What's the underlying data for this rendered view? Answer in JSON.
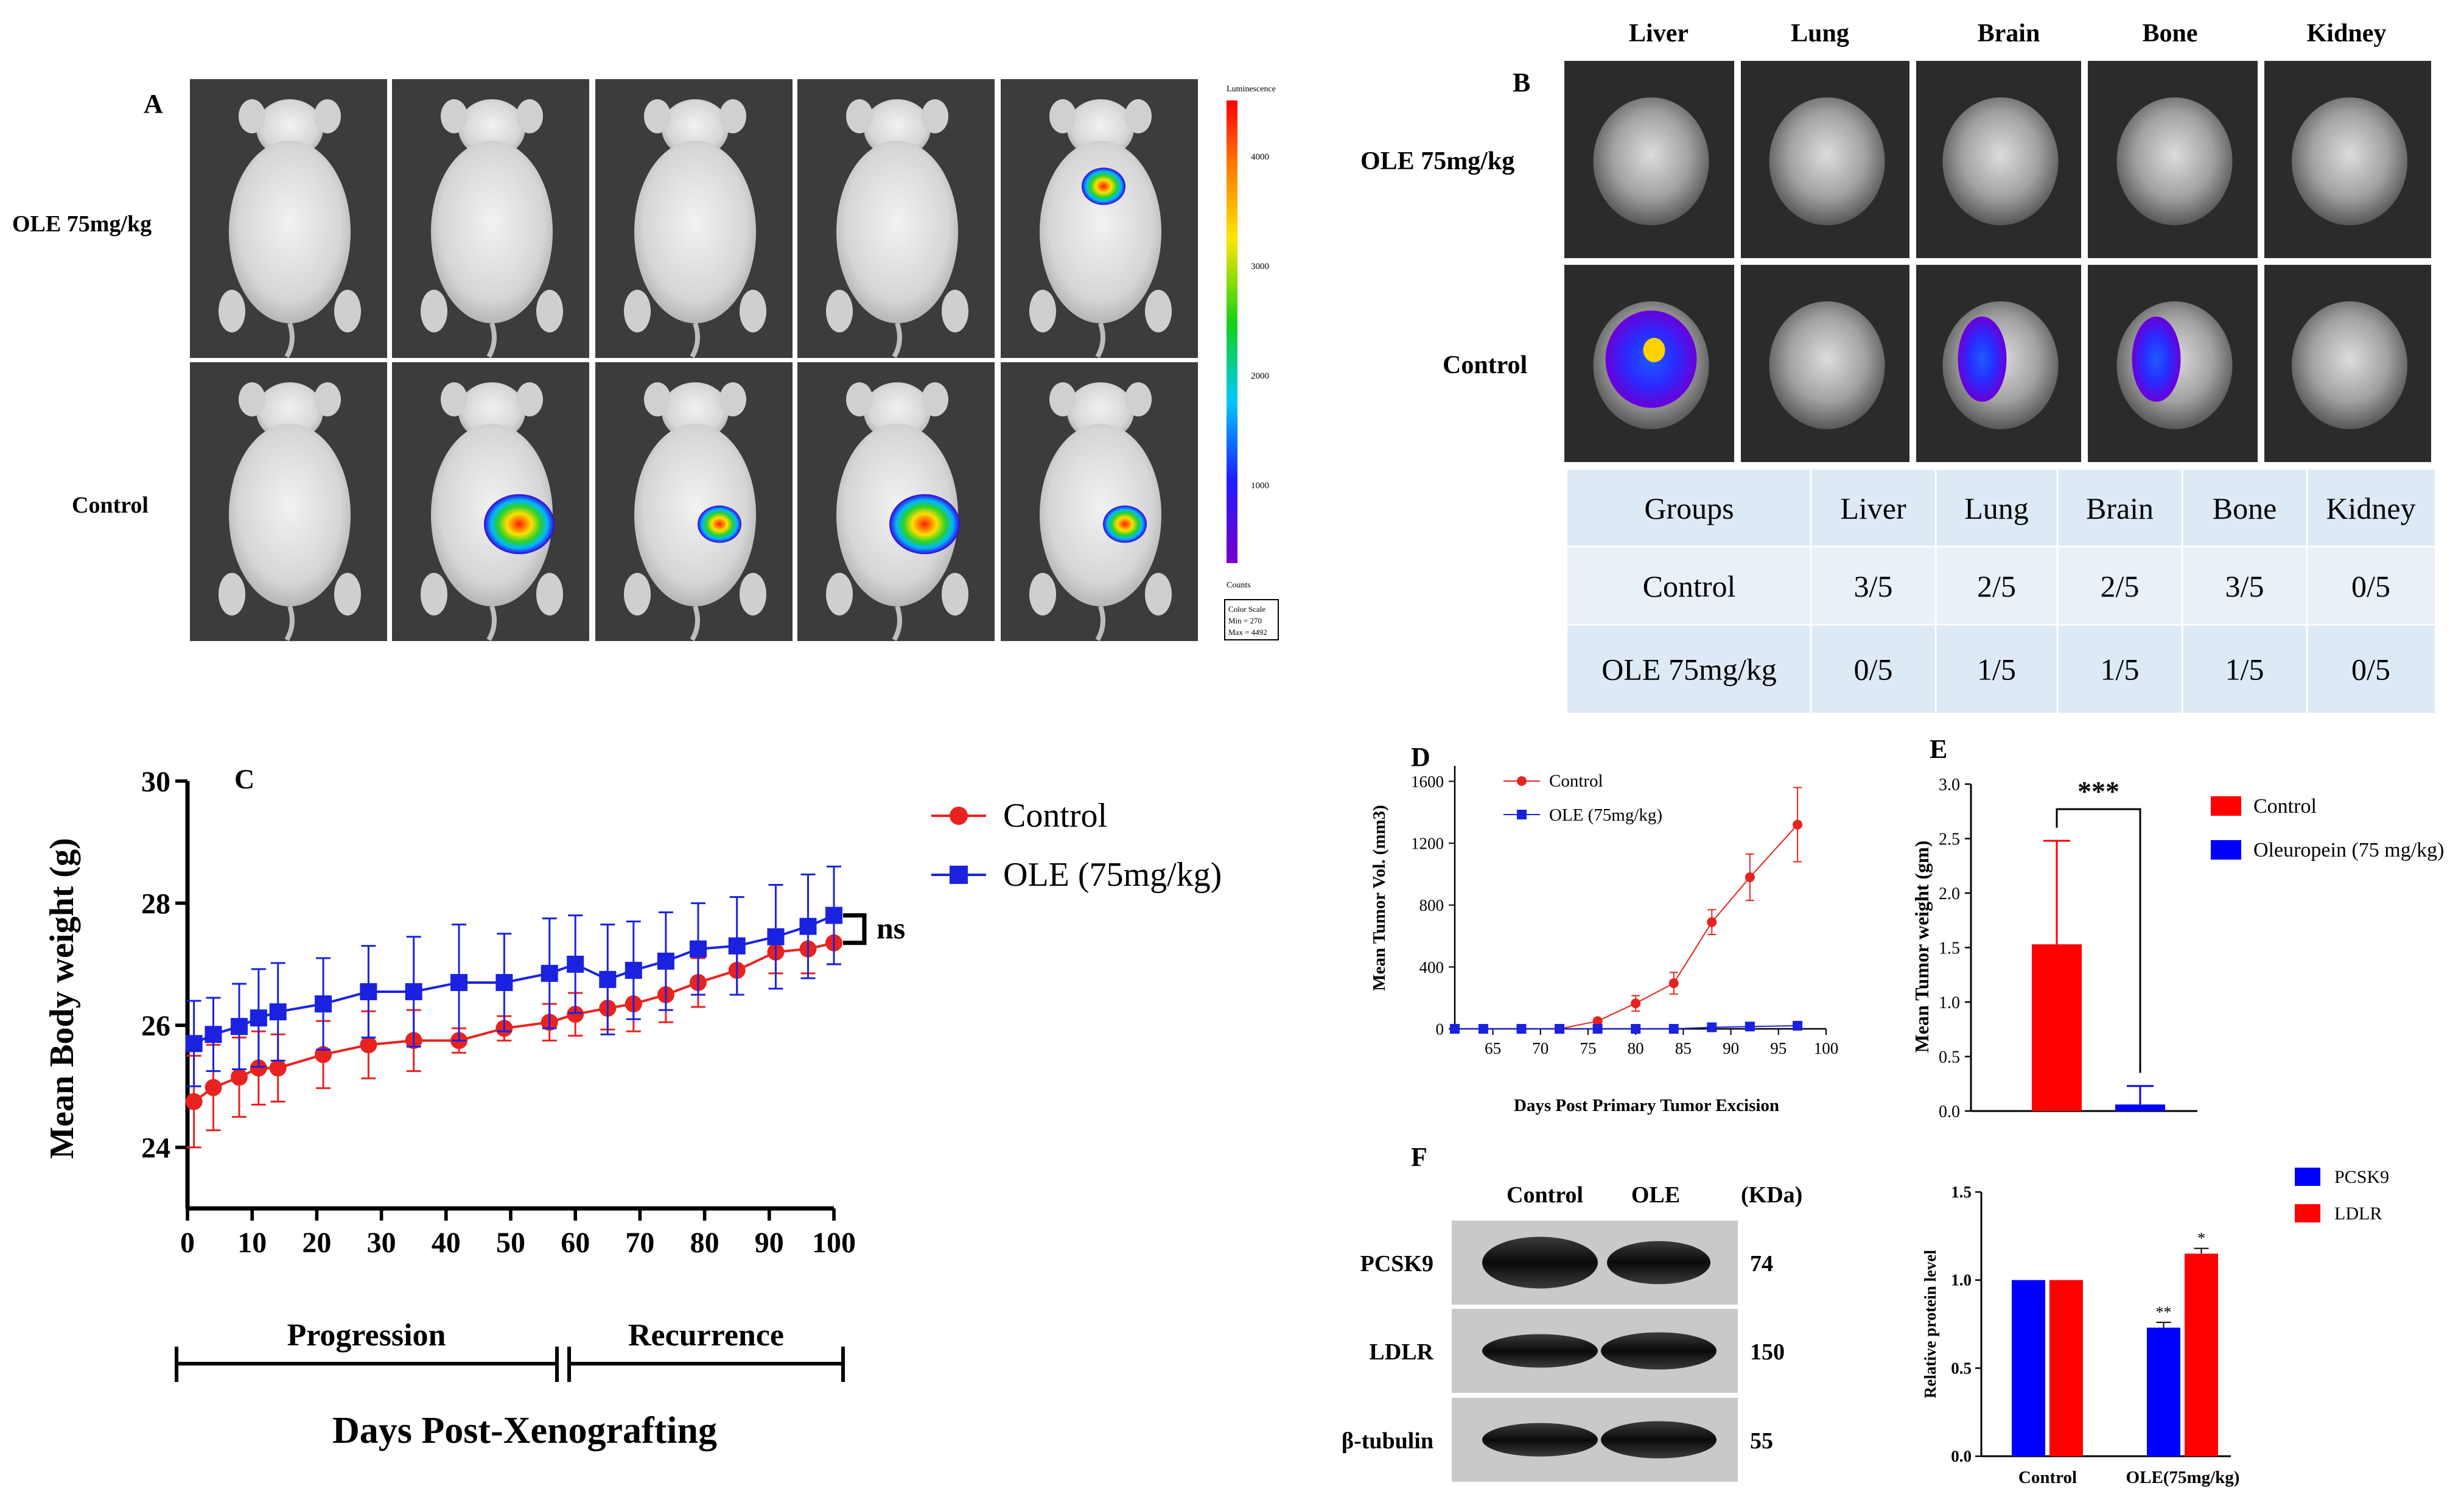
{
  "panels": {
    "A": {
      "letter": "A",
      "row_labels": [
        "OLE 75mg/kg",
        "Control"
      ],
      "colorbar": {
        "title": "Luminescence",
        "ticks": [
          "4000",
          "3000",
          "2000",
          "1000"
        ],
        "units": "Counts",
        "scale_title": "Color Scale",
        "scale_min": "Min = 270",
        "scale_max": "Max = 4492"
      },
      "signals": {
        "OLE 75mg/kg": [
          0,
          0,
          0,
          0,
          1
        ],
        "Control": [
          0,
          1,
          1,
          1,
          1
        ]
      }
    },
    "B": {
      "letter": "B",
      "organs": [
        "Liver",
        "Lung",
        "Brain",
        "Bone",
        "Kidney"
      ],
      "row_labels": [
        "OLE 75mg/kg",
        "Control"
      ],
      "table": {
        "header": [
          "Groups",
          "Liver",
          "Lung",
          "Brain",
          "Bone",
          "Kidney"
        ],
        "rows": [
          [
            "Control",
            "3/5",
            "2/5",
            "2/5",
            "3/5",
            "0/5"
          ],
          [
            "OLE 75mg/kg",
            "0/5",
            "1/5",
            "1/5",
            "1/5",
            "0/5"
          ]
        ]
      }
    }
  },
  "chart_data": [
    {
      "panel": "C",
      "type": "line",
      "title": "",
      "ylabel": "Mean Body weight (g)",
      "xlabel": "Days Post-Xenografting",
      "xlim": [
        0,
        100
      ],
      "ylim": [
        23,
        30
      ],
      "xticks": [
        0,
        10,
        20,
        30,
        40,
        50,
        60,
        70,
        80,
        90,
        100
      ],
      "yticks": [
        24,
        26,
        28,
        30
      ],
      "phases": [
        "Progression",
        "Recurrence"
      ],
      "significance": "ns",
      "series": [
        {
          "name": "Control",
          "color": "#e8231f",
          "marker": "circle",
          "x": [
            1,
            4,
            8,
            11,
            14,
            21,
            28,
            35,
            42,
            49,
            56,
            60,
            65,
            69,
            74,
            79,
            85,
            91,
            96,
            100
          ],
          "values": [
            24.75,
            24.98,
            25.15,
            25.3,
            25.3,
            25.52,
            25.68,
            25.75,
            25.75,
            25.95,
            26.05,
            26.18,
            26.28,
            26.35,
            26.5,
            26.7,
            26.9,
            27.2,
            27.25,
            27.35
          ],
          "err": [
            0.75,
            0.7,
            0.65,
            0.6,
            0.55,
            0.55,
            0.55,
            0.5,
            0.2,
            0.2,
            0.3,
            0.35,
            0.35,
            0.45,
            0.45,
            0.4,
            0.4,
            0.35,
            0.4,
            0.35
          ]
        },
        {
          "name": "OLE (75mg/kg)",
          "color": "#1a22e0",
          "marker": "square",
          "x": [
            1,
            4,
            8,
            11,
            14,
            21,
            28,
            35,
            42,
            49,
            56,
            60,
            65,
            69,
            74,
            79,
            85,
            91,
            96,
            100
          ],
          "values": [
            25.7,
            25.85,
            25.98,
            26.12,
            26.22,
            26.35,
            26.55,
            26.55,
            26.7,
            26.7,
            26.85,
            27.0,
            26.75,
            26.9,
            27.05,
            27.25,
            27.3,
            27.45,
            27.62,
            27.8
          ],
          "err": [
            0.7,
            0.6,
            0.7,
            0.8,
            0.8,
            0.75,
            0.75,
            0.9,
            0.95,
            0.8,
            0.9,
            0.8,
            0.9,
            0.8,
            0.8,
            0.75,
            0.8,
            0.85,
            0.85,
            0.8
          ]
        }
      ]
    },
    {
      "panel": "D",
      "type": "line",
      "ylabel": "Mean Tumor Vol. (mm3)",
      "xlabel": "Days Post Primary Tumor Excision",
      "xlim": [
        61,
        100
      ],
      "ylim": [
        0,
        1700
      ],
      "xticks": [
        65,
        70,
        75,
        80,
        85,
        90,
        95,
        100
      ],
      "yticks": [
        0,
        400,
        800,
        1200,
        1600
      ],
      "series": [
        {
          "name": "Control",
          "color": "#e8231f",
          "marker": "circle",
          "x": [
            61,
            64,
            68,
            72,
            76,
            80,
            84,
            88,
            92,
            97
          ],
          "values": [
            0,
            0,
            0,
            0,
            50,
            165,
            295,
            690,
            980,
            1320
          ],
          "err": [
            0,
            0,
            0,
            0,
            15,
            50,
            70,
            80,
            150,
            240
          ]
        },
        {
          "name": "OLE (75mg/kg)",
          "color": "#1a22e0",
          "marker": "square",
          "x": [
            61,
            64,
            68,
            72,
            76,
            80,
            84,
            88,
            92,
            97
          ],
          "values": [
            0,
            0,
            0,
            0,
            0,
            0,
            0,
            10,
            15,
            20
          ],
          "err": [
            0,
            0,
            0,
            0,
            0,
            0,
            0,
            0,
            0,
            0
          ]
        }
      ]
    },
    {
      "panel": "E",
      "type": "bar",
      "ylabel": "Mean Tumor weight (gm)",
      "ylim": [
        0,
        3.0
      ],
      "yticks": [
        0.0,
        0.5,
        1.0,
        1.5,
        2.0,
        2.5,
        3.0
      ],
      "ytick_labels": [
        "0.0",
        "0.5",
        "1.0",
        "1.5",
        "2.0",
        "2.5",
        "3.0"
      ],
      "categories": [
        "Control",
        "Oleuropein (75 mg/kg)"
      ],
      "values": [
        1.53,
        0.06
      ],
      "err": [
        0.95,
        0.17
      ],
      "colors": [
        "#ff0000",
        "#0000ff"
      ],
      "significance": "***"
    },
    {
      "panel": "F",
      "type": "bar",
      "ylabel": "Relative protein level",
      "ylim": [
        0,
        1.5
      ],
      "yticks": [
        0.0,
        0.5,
        1.0,
        1.5
      ],
      "ytick_labels": [
        "0.0",
        "0.5",
        "1.0",
        "1.5"
      ],
      "categories": [
        "Control",
        "OLE(75mg/kg)"
      ],
      "series": [
        {
          "name": "PCSK9",
          "color": "#0000ff",
          "values": [
            1.0,
            0.73
          ],
          "err": [
            0,
            0.03
          ],
          "marks": [
            "",
            "**"
          ]
        },
        {
          "name": "LDLR",
          "color": "#ff0000",
          "values": [
            1.0,
            1.15
          ],
          "err": [
            0,
            0.03
          ],
          "marks": [
            "",
            "*"
          ]
        }
      ],
      "blot": {
        "lanes": [
          "Control",
          "OLE"
        ],
        "unit": "(KDa)",
        "rows": [
          {
            "label": "PCSK9",
            "kda": "74"
          },
          {
            "label": "LDLR",
            "kda": "150"
          },
          {
            "label": "β-tubulin",
            "kda": "55"
          }
        ]
      }
    }
  ],
  "colors": {
    "control": "#e8231f",
    "ole": "#1a22e0",
    "table_bg": "#dde9f5",
    "table_bg_alt": "#e8f0f8"
  }
}
